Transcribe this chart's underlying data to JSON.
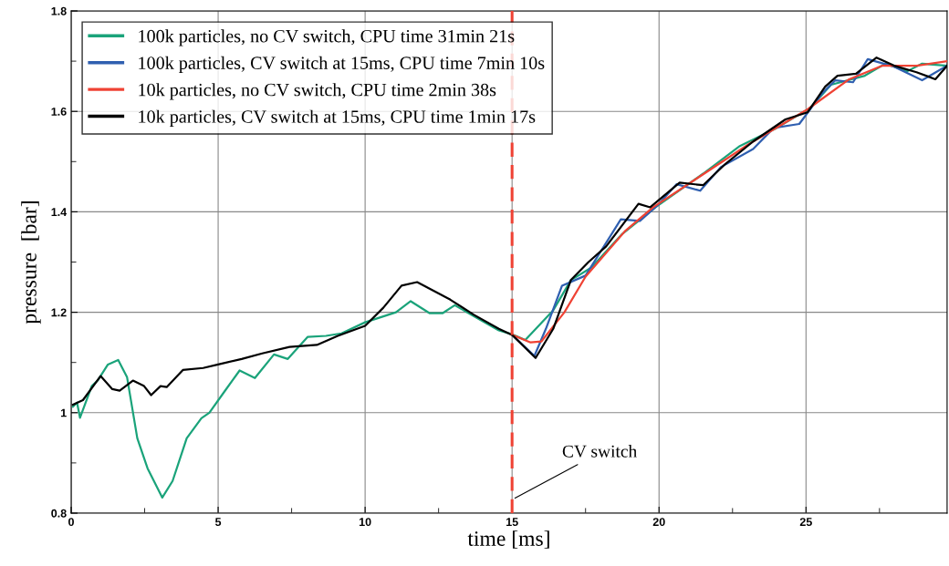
{
  "chart_data": {
    "type": "line",
    "xlabel": "time [ms]",
    "ylabel": "pressure  [bar]",
    "xlim": [
      0,
      29.8
    ],
    "ylim": [
      0.8,
      1.8
    ],
    "xticks": [
      0,
      {
        "value": 2.5,
        "label": null
      },
      5,
      {
        "value": 7.5,
        "label": null
      },
      10,
      {
        "value": 12.5,
        "label": null
      },
      15,
      {
        "value": 17.5,
        "label": null
      },
      20,
      {
        "value": 22.5,
        "label": null
      },
      25,
      {
        "value": 27.5,
        "label": null
      }
    ],
    "yticks": [
      0.8,
      {
        "value": 0.9,
        "label": null
      },
      1,
      {
        "value": 1.1,
        "label": null
      },
      1.2,
      {
        "value": 1.3,
        "label": null
      },
      1.4,
      {
        "value": 1.5,
        "label": null
      },
      1.6,
      {
        "value": 1.7,
        "label": null
      },
      1.8
    ],
    "grid": true,
    "legend": "top left",
    "line_style": "solid",
    "marker": "none",
    "ref_lines": [
      {
        "axis": "x",
        "value": 15,
        "label": "CV switch",
        "color": "#ef4234",
        "line_style": "dashed"
      }
    ],
    "series": [
      {
        "name": "100k particles, no CV switch, CPU time 31min 21s",
        "color": "#1aa37a",
        "x": [
          0.06,
          0.2,
          0.3,
          0.7,
          0.9,
          1.25,
          1.6,
          1.9,
          2.25,
          2.6,
          3.1,
          3.45,
          3.93,
          4.43,
          4.7,
          5.25,
          5.73,
          6.25,
          6.9,
          7.37,
          8.05,
          8.67,
          9.2,
          10.0,
          11.05,
          11.55,
          12.2,
          12.63,
          13.05,
          14.55,
          15.0,
          15.45,
          16.4,
          17.0,
          17.7,
          18.73,
          19.88,
          21.5,
          22.75,
          24.0,
          25.15,
          25.85,
          27.0,
          27.7,
          28.45,
          28.95,
          29.8
        ],
        "values": [
          1.012,
          1.02,
          0.99,
          1.053,
          1.064,
          1.096,
          1.105,
          1.071,
          0.949,
          0.889,
          0.831,
          0.864,
          0.949,
          0.989,
          1.0,
          1.045,
          1.084,
          1.069,
          1.116,
          1.107,
          1.151,
          1.153,
          1.158,
          1.18,
          1.2,
          1.222,
          1.198,
          1.198,
          1.214,
          1.164,
          1.156,
          1.145,
          1.204,
          1.264,
          1.289,
          1.355,
          1.409,
          1.476,
          1.531,
          1.567,
          1.607,
          1.653,
          1.671,
          1.695,
          1.68,
          1.695,
          1.691
        ]
      },
      {
        "name": "100k particles, CV switch at 15ms, CPU time 7min 10s",
        "color": "#2f5fb0",
        "x": [
          15.0,
          15.76,
          16.15,
          16.7,
          17.5,
          18.7,
          19.35,
          19.95,
          20.6,
          21.4,
          22.1,
          23.2,
          23.9,
          24.77,
          25.55,
          26.0,
          26.6,
          27.1,
          28.0,
          28.95,
          29.8
        ],
        "values": [
          1.155,
          1.113,
          1.167,
          1.253,
          1.273,
          1.385,
          1.382,
          1.413,
          1.455,
          1.442,
          1.489,
          1.525,
          1.567,
          1.575,
          1.636,
          1.662,
          1.658,
          1.704,
          1.689,
          1.662,
          1.691
        ]
      },
      {
        "name": "10k particles, no CV switch, CPU time 2min 38s",
        "color": "#ef4234",
        "x": [
          15.0,
          15.63,
          16.0,
          16.78,
          17.5,
          18.85,
          19.8,
          21.3,
          23.06,
          25.05,
          26.47,
          27.6,
          28.76,
          29.8
        ],
        "values": [
          1.155,
          1.14,
          1.142,
          1.2,
          1.271,
          1.362,
          1.409,
          1.467,
          1.535,
          1.604,
          1.664,
          1.691,
          1.691,
          1.7
        ]
      },
      {
        "name": "10k particles, CV switch at 15ms, CPU time 1min 17s",
        "color": "#000000",
        "x": [
          0.06,
          0.4,
          1.0,
          1.4,
          1.65,
          2.1,
          2.48,
          2.72,
          3.04,
          3.25,
          3.8,
          4.49,
          5.0,
          5.8,
          6.5,
          7.43,
          8.36,
          9.07,
          10.0,
          10.62,
          11.24,
          11.77,
          12.9,
          13.7,
          14.55,
          15.0,
          15.8,
          16.4,
          17.0,
          17.6,
          18.2,
          19.3,
          19.7,
          20.7,
          21.5,
          22.25,
          23.2,
          24.3,
          25.05,
          25.65,
          26.07,
          26.7,
          27.4,
          28.0,
          28.76,
          29.4,
          29.8
        ],
        "values": [
          1.016,
          1.025,
          1.073,
          1.047,
          1.044,
          1.064,
          1.053,
          1.035,
          1.053,
          1.051,
          1.085,
          1.089,
          1.096,
          1.107,
          1.118,
          1.131,
          1.135,
          1.153,
          1.173,
          1.209,
          1.253,
          1.26,
          1.225,
          1.195,
          1.167,
          1.155,
          1.109,
          1.167,
          1.264,
          1.3,
          1.331,
          1.416,
          1.409,
          1.458,
          1.453,
          1.495,
          1.54,
          1.584,
          1.598,
          1.649,
          1.671,
          1.675,
          1.707,
          1.691,
          1.678,
          1.664,
          1.691
        ]
      }
    ]
  }
}
